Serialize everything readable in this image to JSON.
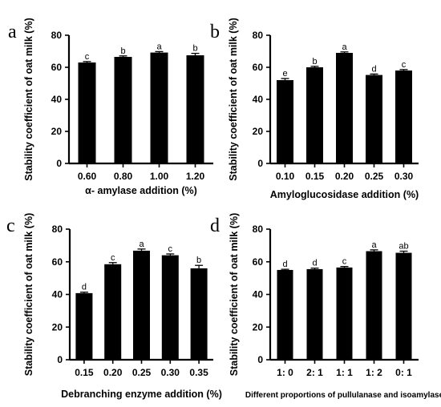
{
  "chart_data": [
    {
      "panel": "a",
      "type": "bar",
      "categories": [
        "0.60",
        "0.80",
        "1.00",
        "1.20"
      ],
      "values": [
        63,
        66.5,
        69.2,
        67.5
      ],
      "errors": [
        0.6,
        0.6,
        0.6,
        1.2
      ],
      "significance": [
        "c",
        "b",
        "a",
        "b"
      ],
      "xlabel": "α- amylase addition (%)",
      "ylabel": "Stability coefficient of oat milk (%)",
      "ylim": [
        0,
        80
      ],
      "yticks": [
        0,
        20,
        40,
        60,
        80
      ]
    },
    {
      "panel": "b",
      "type": "bar",
      "categories": [
        "0.10",
        "0.15",
        "0.20",
        "0.25",
        "0.30"
      ],
      "values": [
        52,
        60,
        69,
        55.2,
        58
      ],
      "errors": [
        1.0,
        0.6,
        0.6,
        0.6,
        0.6
      ],
      "significance": [
        "e",
        "b",
        "a",
        "d",
        "c"
      ],
      "xlabel": "Amyloglucosidase addition (%)",
      "ylabel": "Stability coefficient of oat milk (%)",
      "ylim": [
        0,
        80
      ],
      "yticks": [
        0,
        20,
        40,
        60,
        80
      ]
    },
    {
      "panel": "c",
      "type": "bar",
      "categories": [
        "0.15",
        "0.20",
        "0.25",
        "0.30",
        "0.35"
      ],
      "values": [
        40.8,
        58.5,
        66.8,
        64,
        56
      ],
      "errors": [
        0.6,
        1.0,
        1.0,
        0.8,
        1.8
      ],
      "significance": [
        "d",
        "c",
        "a",
        "c",
        "b"
      ],
      "xlabel": "Debranching enzyme addition (%)",
      "ylabel": "Stability coefficient of oat milk (%)",
      "ylim": [
        0,
        80
      ],
      "yticks": [
        0,
        20,
        40,
        60,
        80
      ]
    },
    {
      "panel": "d",
      "type": "bar",
      "categories": [
        "1: 0",
        "2: 1",
        "1: 1",
        "1: 2",
        "0: 1"
      ],
      "values": [
        55,
        55.5,
        56.5,
        66.5,
        65.5
      ],
      "errors": [
        0.4,
        0.6,
        0.6,
        0.8,
        1.0
      ],
      "significance": [
        "d",
        "d",
        "c",
        "a",
        "ab"
      ],
      "xlabel": "Different proportions of pullulanase and isoamylase",
      "ylabel": "Stability coefficient of oat milk (%)",
      "ylim": [
        0,
        80
      ],
      "yticks": [
        0,
        20,
        40,
        60,
        80
      ]
    }
  ]
}
